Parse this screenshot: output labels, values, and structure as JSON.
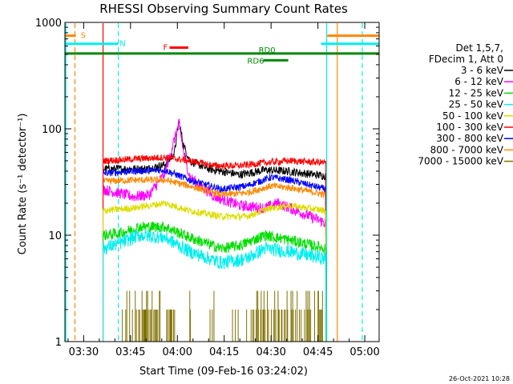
{
  "chart_data": {
    "type": "line",
    "title": "RHESSI Observing Summary Count Rates",
    "xlabel": "Start Time (09-Feb-16 03:24:02)",
    "ylabel": "Count Rate (s⁻¹ detector⁻¹)",
    "y_scale": "log",
    "ylim": [
      1,
      1000
    ],
    "xlim_minutes": [
      204,
      304.6
    ],
    "x_ticks": [
      {
        "label": "03:30",
        "minute": 210
      },
      {
        "label": "03:45",
        "minute": 225
      },
      {
        "label": "04:00",
        "minute": 240
      },
      {
        "label": "04:15",
        "minute": 255
      },
      {
        "label": "04:30",
        "minute": 270
      },
      {
        "label": "04:45",
        "minute": 285
      },
      {
        "label": "05:00",
        "minute": 300
      }
    ],
    "y_ticks": [
      {
        "label": "1",
        "value": 1
      },
      {
        "label": "10",
        "value": 10
      },
      {
        "label": "100",
        "value": 100
      },
      {
        "label": "1000",
        "value": 1000
      }
    ],
    "legend_header": [
      "Det 1,5,7,",
      "FDecim 1, Att 0"
    ],
    "legend_position": "right",
    "series": [
      {
        "name": "3 - 6 keV",
        "color": "#000000",
        "level": 42,
        "noise": 0.06,
        "profile": [
          [
            216.2,
            42
          ],
          [
            230,
            42
          ],
          [
            236,
            46
          ],
          [
            239,
            58
          ],
          [
            240.5,
            118
          ],
          [
            242,
            70
          ],
          [
            244,
            50
          ],
          [
            250,
            42
          ],
          [
            260,
            37
          ],
          [
            268,
            41
          ],
          [
            275,
            40
          ],
          [
            281,
            38
          ],
          [
            287.6,
            36
          ]
        ]
      },
      {
        "name": "6 - 12 keV",
        "color": "#ff00ff",
        "level": 27,
        "noise": 0.08,
        "profile": [
          [
            216.2,
            27
          ],
          [
            226,
            23
          ],
          [
            231,
            24
          ],
          [
            236,
            38
          ],
          [
            240.5,
            112
          ],
          [
            242,
            60
          ],
          [
            244,
            35
          ],
          [
            252,
            23
          ],
          [
            260,
            19
          ],
          [
            268,
            18
          ],
          [
            272,
            20
          ],
          [
            276,
            18
          ],
          [
            287.6,
            13
          ]
        ]
      },
      {
        "name": "12 - 25 keV",
        "color": "#00dd00",
        "level": 10,
        "noise": 0.08,
        "profile": [
          [
            216.2,
            10
          ],
          [
            222,
            10.5
          ],
          [
            228,
            12
          ],
          [
            236,
            12
          ],
          [
            244,
            9.5
          ],
          [
            254,
            7.5
          ],
          [
            260,
            8
          ],
          [
            268,
            10
          ],
          [
            276,
            9
          ],
          [
            287.6,
            7.5
          ]
        ]
      },
      {
        "name": "25 - 50 keV",
        "color": "#00eeee",
        "level": 7.5,
        "noise": 0.1,
        "profile": [
          [
            216.2,
            7.5
          ],
          [
            222,
            8.5
          ],
          [
            228,
            10
          ],
          [
            236,
            9.5
          ],
          [
            244,
            7
          ],
          [
            254,
            5.5
          ],
          [
            262,
            6
          ],
          [
            268,
            7.5
          ],
          [
            276,
            7
          ],
          [
            287.6,
            6
          ]
        ]
      },
      {
        "name": "50 - 100 keV",
        "color": "#dddd00",
        "level": 17,
        "noise": 0.05,
        "profile": [
          [
            216.2,
            17
          ],
          [
            226,
            18
          ],
          [
            236,
            20
          ],
          [
            244,
            17
          ],
          [
            254,
            15
          ],
          [
            262,
            15
          ],
          [
            270,
            18
          ],
          [
            276,
            19
          ],
          [
            287.6,
            17
          ]
        ]
      },
      {
        "name": "100 - 300 keV",
        "color": "#ff0000",
        "level": 50,
        "noise": 0.05,
        "profile": [
          [
            216.2,
            50
          ],
          [
            236,
            54
          ],
          [
            244,
            50
          ],
          [
            252,
            45
          ],
          [
            260,
            45
          ],
          [
            268,
            48
          ],
          [
            276,
            50
          ],
          [
            287.6,
            48
          ]
        ]
      },
      {
        "name": "300 - 800 keV",
        "color": "#0000ff",
        "level": 38,
        "noise": 0.05,
        "profile": [
          [
            216.2,
            38
          ],
          [
            226,
            40
          ],
          [
            236,
            41
          ],
          [
            244,
            33
          ],
          [
            254,
            27
          ],
          [
            262,
            29
          ],
          [
            270,
            35
          ],
          [
            276,
            33
          ],
          [
            287.6,
            27
          ]
        ]
      },
      {
        "name": "800 - 7000 keV",
        "color": "#ff8800",
        "level": 32,
        "noise": 0.05,
        "profile": [
          [
            216.2,
            32
          ],
          [
            226,
            33
          ],
          [
            236,
            33
          ],
          [
            244,
            29
          ],
          [
            254,
            24
          ],
          [
            262,
            25
          ],
          [
            270,
            29
          ],
          [
            276,
            28
          ],
          [
            287.6,
            24
          ]
        ]
      },
      {
        "name": "7000 - 15000 keV",
        "color": "#807000",
        "level": 1.6,
        "noise": 0.3,
        "profile": [
          [
            216.2,
            1.6
          ],
          [
            287.6,
            1.6
          ]
        ]
      }
    ],
    "flag_bars": [
      {
        "label": "S",
        "color": "#ff8800",
        "segments": [
          [
            204,
            207.5
          ],
          [
            288,
            304.6
          ]
        ],
        "y_value": 750
      },
      {
        "label": "N",
        "color": "#00eeee",
        "segments": [
          [
            204,
            221
          ],
          [
            286,
            304.6
          ]
        ],
        "y_value": 630
      },
      {
        "label": "F",
        "color": "#ff0000",
        "segments": [
          [
            237.5,
            243.5
          ]
        ],
        "y_value": 580
      },
      {
        "label": "RD0",
        "color": "#008800",
        "segments": [
          [
            204,
            304.6
          ]
        ],
        "y_value": 510
      },
      {
        "label": "RD6",
        "color": "#008800",
        "segments": [
          [
            267.5,
            275.5
          ]
        ],
        "y_value": 440
      }
    ],
    "vertical_lines": [
      {
        "minute": 204.3,
        "color": "#00eeee",
        "style": "solid"
      },
      {
        "minute": 207.2,
        "color": "#ff8800",
        "style": "dashed"
      },
      {
        "minute": 216.2,
        "color": "#ff0000",
        "style": "solid"
      },
      {
        "minute": 221.1,
        "color": "#00eeee",
        "style": "dashed"
      },
      {
        "minute": 287.8,
        "color": "#00eeee",
        "style": "solid"
      },
      {
        "minute": 291.2,
        "color": "#ff8800",
        "style": "solid"
      },
      {
        "minute": 299.2,
        "color": "#00eeee",
        "style": "dashed"
      }
    ],
    "footer_date": "26-Oct-2021 10:28"
  }
}
